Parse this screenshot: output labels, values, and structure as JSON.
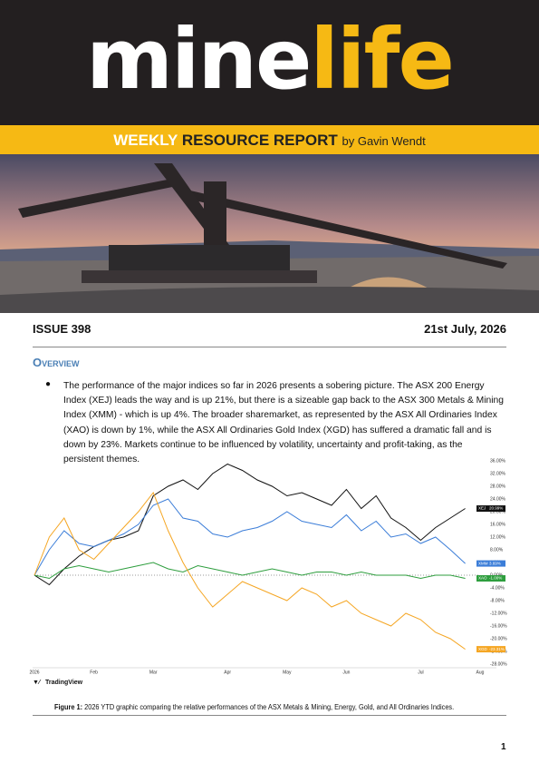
{
  "header": {
    "logo_part1": "mine",
    "logo_part2": "life",
    "banner_weekly": "WEEKLY",
    "banner_report": "RESOURCE REPORT",
    "banner_by": "by Gavin Wendt"
  },
  "issue": "ISSUE 398",
  "date": "21st July, 2026",
  "overview": {
    "heading": "Overview",
    "bullet": "The performance of the major indices so far in 2026 presents a sobering picture. The ASX 200 Energy Index (XEJ) leads the way and is up 21%, but there is a sizeable gap back to the ASX 300 Metals & Mining Index (XMM) - which is up 4%. The broader sharemarket, as represented by the ASX All Ordinaries Index (XAO) is down by 1%, while the ASX All Ordinaries Gold Index (XGD) has suffered a dramatic fall and is down by 23%. Markets continue to be influenced by volatility, uncertainty and profit-taking, as the persistent themes."
  },
  "chart_data": {
    "type": "line",
    "categories": [
      "2026",
      null,
      null,
      null,
      "Feb",
      null,
      null,
      null,
      "Mar",
      null,
      null,
      null,
      null,
      "Apr",
      null,
      null,
      null,
      "May",
      null,
      null,
      null,
      "Jun",
      null,
      null,
      null,
      null,
      "Jul",
      null,
      null,
      null,
      "Aug"
    ],
    "series": [
      {
        "name": "XEJ",
        "color": "#111111",
        "tag": "20.99%",
        "values": [
          0,
          -3,
          2,
          6,
          9,
          11,
          12,
          14,
          25,
          28,
          30,
          27,
          32,
          35,
          33,
          30,
          28,
          25,
          26,
          24,
          22,
          27,
          21,
          25,
          18,
          15,
          11,
          15,
          18,
          20.99,
          null
        ]
      },
      {
        "name": "XMM",
        "color": "#3b7dd8",
        "tag": "3.69%",
        "values": [
          0,
          8,
          14,
          10,
          9,
          11,
          13,
          16,
          22,
          24,
          18,
          17,
          13,
          12,
          14,
          15,
          17,
          20,
          17,
          16,
          15,
          19,
          14,
          17,
          12,
          13,
          10,
          12,
          8,
          3.69,
          null
        ]
      },
      {
        "name": "XAO",
        "color": "#2e9e3e",
        "tag": "-1.00%",
        "values": [
          0,
          -1,
          2,
          3,
          2,
          1,
          2,
          3,
          4,
          2,
          1,
          3,
          2,
          1,
          0,
          1,
          2,
          1,
          0,
          1,
          1,
          0,
          1,
          0,
          0,
          0,
          -1,
          0,
          0,
          -1,
          null
        ]
      },
      {
        "name": "XGD",
        "color": "#f5a623",
        "tag": "-23.31%",
        "values": [
          0,
          12,
          18,
          8,
          5,
          10,
          15,
          20,
          26,
          14,
          4,
          -4,
          -10,
          -6,
          -2,
          -4,
          -6,
          -8,
          -4,
          -6,
          -10,
          -8,
          -12,
          -14,
          -16,
          -12,
          -14,
          -18,
          -20,
          -23.31,
          null
        ]
      }
    ],
    "ylim": [
      -28,
      36
    ],
    "yticks": [
      {
        "value": -28,
        "label": "-28.00%"
      },
      {
        "value": -24,
        "label": "-24.00%"
      },
      {
        "value": -20,
        "label": "-20.00%"
      },
      {
        "value": -16,
        "label": "-16.00%"
      },
      {
        "value": -12,
        "label": "-12.00%"
      },
      {
        "value": -8,
        "label": "-8.00%"
      },
      {
        "value": -4,
        "label": "-4.00%"
      },
      {
        "value": 0,
        "label": "0.00%"
      },
      {
        "value": 4,
        "label": "4.00%"
      },
      {
        "value": 8,
        "label": "8.00%"
      },
      {
        "value": 12,
        "label": "12.00%"
      },
      {
        "value": 16,
        "label": "16.00%"
      },
      {
        "value": 20,
        "label": "20.00%"
      },
      {
        "value": 24,
        "label": "24.00%"
      },
      {
        "value": 28,
        "label": "28.00%"
      },
      {
        "value": 32,
        "label": "32.00%"
      },
      {
        "value": 36,
        "label": "36.00%"
      }
    ],
    "grid": false,
    "source": "TradingView"
  },
  "figure": {
    "label": "Figure 1:",
    "caption": "2026 YTD graphic comparing the relative performances of the ASX Metals & Mining, Energy, Gold, and All Ordinaries Indices."
  },
  "page_number": "1"
}
